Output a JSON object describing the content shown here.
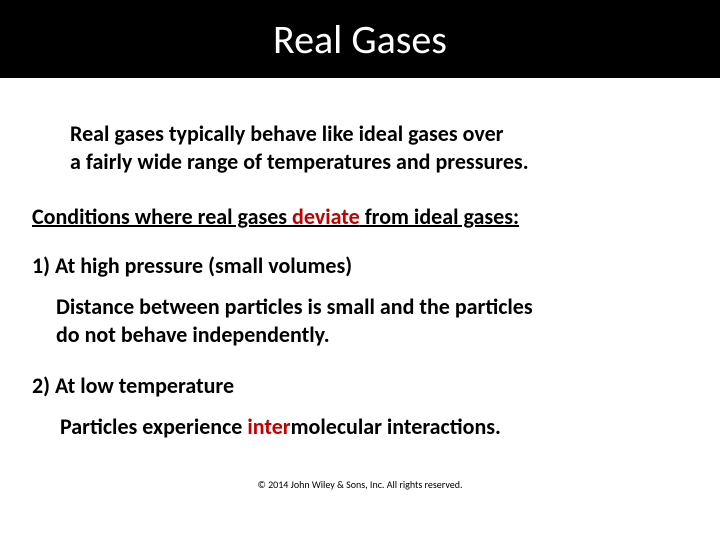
{
  "title": "Real Gases",
  "intro_line1": "Real gases typically behave like ideal gases over",
  "intro_line2": "a fairly wide range of temperatures and pressures.",
  "conditions_heading_prefix": "Conditions where real gases ",
  "conditions_heading_red": "deviate",
  "conditions_heading_suffix": " from ideal gases:",
  "cond1_label": "1) At high pressure (small volumes)",
  "cond1_desc_line1": "Distance between particles is small and the particles",
  "cond1_desc_line2": "do not behave independently.",
  "cond2_label": "2) At low temperature",
  "cond2_desc_prefix": "Particles experience ",
  "cond2_desc_red": "inter",
  "cond2_desc_suffix": "molecular interactions.",
  "copyright": "© 2014 John Wiley & Sons, Inc. All rights reserved."
}
